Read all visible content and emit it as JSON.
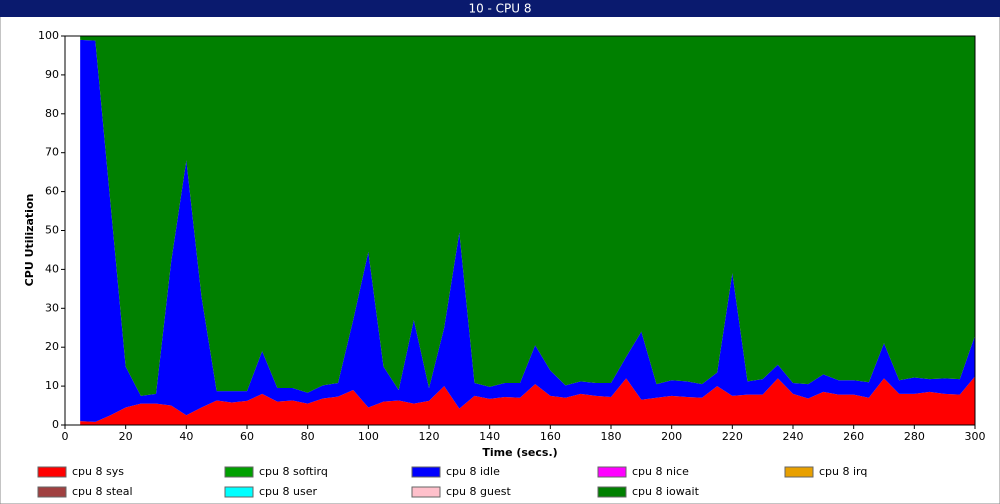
{
  "chart_data": {
    "type": "stacked_area",
    "title": "10 - CPU 8",
    "x_label": "Time (secs.)",
    "y_label": "CPU Utilization",
    "x": [
      5,
      10,
      15,
      20,
      25,
      30,
      35,
      40,
      45,
      50,
      55,
      60,
      65,
      70,
      75,
      80,
      85,
      90,
      95,
      100,
      105,
      110,
      115,
      120,
      125,
      130,
      135,
      140,
      145,
      150,
      155,
      160,
      165,
      170,
      175,
      180,
      185,
      190,
      195,
      200,
      205,
      210,
      215,
      220,
      225,
      230,
      235,
      240,
      245,
      250,
      255,
      260,
      265,
      270,
      275,
      280,
      285,
      290,
      295,
      300
    ],
    "xlim": [
      0,
      300
    ],
    "xticks": [
      0,
      20,
      40,
      60,
      80,
      100,
      120,
      140,
      160,
      180,
      200,
      220,
      240,
      260,
      280,
      300
    ],
    "ylim": [
      0,
      100
    ],
    "yticks": [
      0,
      10,
      20,
      30,
      40,
      50,
      60,
      70,
      80,
      90,
      100
    ],
    "series": [
      {
        "name": "cpu 8 sys",
        "color": "#ff0000",
        "values": [
          1,
          0.8,
          2.5,
          4.5,
          5.5,
          5.5,
          5,
          2.5,
          4.5,
          6.3,
          5.8,
          6.2,
          8,
          6,
          6.3,
          5.5,
          6.8,
          7.3,
          9,
          4.5,
          6,
          6.3,
          5.5,
          6.2,
          10,
          4.2,
          7.5,
          6.7,
          7.2,
          7,
          10.5,
          7.5,
          7,
          8,
          7.5,
          7.2,
          12,
          6.5,
          7,
          7.5,
          7.2,
          7,
          10,
          7.5,
          7.8,
          7.8,
          12,
          8,
          6.8,
          8.5,
          7.8,
          7.8,
          7,
          12,
          8,
          8,
          8.5,
          8,
          7.8,
          12.5
        ]
      },
      {
        "name": "cpu 8 softirq",
        "color": "#00a000",
        "values": [
          0,
          0,
          0,
          0,
          0,
          0,
          0,
          0,
          0,
          0,
          0,
          0,
          0,
          0,
          0,
          0,
          0,
          0,
          0,
          0,
          0,
          0,
          0,
          0,
          0,
          0,
          0,
          0,
          0,
          0,
          0,
          0,
          0,
          0,
          0,
          0,
          0,
          0,
          0,
          0,
          0,
          0,
          0,
          0,
          0,
          0,
          0,
          0,
          0,
          0,
          0,
          0,
          0,
          0,
          0,
          0,
          0,
          0,
          0,
          0
        ]
      },
      {
        "name": "cpu 8 idle",
        "color": "#0000ff",
        "values": [
          98,
          98,
          54.5,
          10.5,
          2,
          2.5,
          37,
          65.5,
          28.5,
          2.4,
          2.9,
          2.5,
          11,
          3.5,
          3.2,
          2.8,
          3.4,
          3.5,
          18,
          40,
          9,
          2.7,
          21.5,
          3.3,
          15,
          45.3,
          3.3,
          3.1,
          3.6,
          3.8,
          10,
          6.5,
          3.2,
          3.2,
          3.3,
          3.6,
          5.5,
          17.5,
          3.5,
          4,
          4,
          3.5,
          3.5,
          31.5,
          3.4,
          4,
          3.5,
          2.8,
          3.7,
          4.5,
          3.7,
          3.7,
          4,
          9,
          3.5,
          4.2,
          3.3,
          4,
          4,
          10.5
        ]
      },
      {
        "name": "cpu 8 nice",
        "color": "#ff00ff",
        "values": [
          0,
          0,
          0,
          0,
          0,
          0,
          0,
          0,
          0,
          0,
          0,
          0,
          0,
          0,
          0,
          0,
          0,
          0,
          0,
          0,
          0,
          0,
          0,
          0,
          0,
          0,
          0,
          0,
          0,
          0,
          0,
          0,
          0,
          0,
          0,
          0,
          0,
          0,
          0,
          0,
          0,
          0,
          0,
          0,
          0,
          0,
          0,
          0,
          0,
          0,
          0,
          0,
          0,
          0,
          0,
          0,
          0,
          0,
          0,
          0
        ]
      },
      {
        "name": "cpu 8 irq",
        "color": "#e8a000",
        "values": [
          0,
          0,
          0,
          0,
          0,
          0,
          0,
          0,
          0,
          0,
          0,
          0,
          0,
          0,
          0,
          0,
          0,
          0,
          0,
          0,
          0,
          0,
          0,
          0,
          0,
          0,
          0,
          0,
          0,
          0,
          0,
          0,
          0,
          0,
          0,
          0,
          0,
          0,
          0,
          0,
          0,
          0,
          0,
          0,
          0,
          0,
          0,
          0,
          0,
          0,
          0,
          0,
          0,
          0,
          0,
          0,
          0,
          0,
          0,
          0
        ]
      },
      {
        "name": "cpu 8 steal",
        "color": "#a04040",
        "values": [
          0,
          0,
          0,
          0,
          0,
          0,
          0,
          0,
          0,
          0,
          0,
          0,
          0,
          0,
          0,
          0,
          0,
          0,
          0,
          0,
          0,
          0,
          0,
          0,
          0,
          0,
          0,
          0,
          0,
          0,
          0,
          0,
          0,
          0,
          0,
          0,
          0,
          0,
          0,
          0,
          0,
          0,
          0,
          0,
          0,
          0,
          0,
          0,
          0,
          0,
          0,
          0,
          0,
          0,
          0,
          0,
          0,
          0,
          0,
          0
        ]
      },
      {
        "name": "cpu 8 user",
        "color": "#00ffff",
        "values": [
          0,
          0,
          0,
          0,
          0,
          0,
          0,
          0,
          0,
          0,
          0,
          0,
          0,
          0,
          0,
          0,
          0,
          0,
          0,
          0,
          0,
          0,
          0,
          0,
          0,
          0,
          0,
          0,
          0,
          0,
          0,
          0,
          0,
          0,
          0,
          0,
          0,
          0,
          0,
          0,
          0,
          0,
          0,
          0,
          0,
          0,
          0,
          0,
          0,
          0,
          0,
          0,
          0,
          0,
          0,
          0,
          0,
          0,
          0,
          0
        ]
      },
      {
        "name": "cpu 8 guest",
        "color": "#ffc0cb",
        "values": [
          0,
          0,
          0,
          0,
          0,
          0,
          0,
          0,
          0,
          0,
          0,
          0,
          0,
          0,
          0,
          0,
          0,
          0,
          0,
          0,
          0,
          0,
          0,
          0,
          0,
          0,
          0,
          0,
          0,
          0,
          0,
          0,
          0,
          0,
          0,
          0,
          0,
          0,
          0,
          0,
          0,
          0,
          0,
          0,
          0,
          0,
          0,
          0,
          0,
          0,
          0,
          0,
          0,
          0,
          0,
          0,
          0,
          0,
          0,
          0
        ]
      },
      {
        "name": "cpu 8 iowait",
        "color": "#008000",
        "values": [
          1,
          1.2,
          43,
          85,
          92.5,
          92,
          58,
          32,
          67,
          91.3,
          91.3,
          91.3,
          81,
          90.5,
          90.5,
          91.7,
          89.8,
          89.2,
          73,
          55.5,
          85,
          91,
          73,
          90.5,
          75,
          50.5,
          89.2,
          90.2,
          89.2,
          89.2,
          79.5,
          86,
          89.8,
          88.8,
          89.2,
          89.2,
          82.5,
          76,
          89.5,
          88.5,
          88.8,
          89.5,
          86.5,
          61,
          88.8,
          88.2,
          84.5,
          89.2,
          89.5,
          87,
          88.5,
          88.5,
          89,
          79,
          88.5,
          87.8,
          88.2,
          88,
          88.2,
          77
        ]
      }
    ]
  }
}
